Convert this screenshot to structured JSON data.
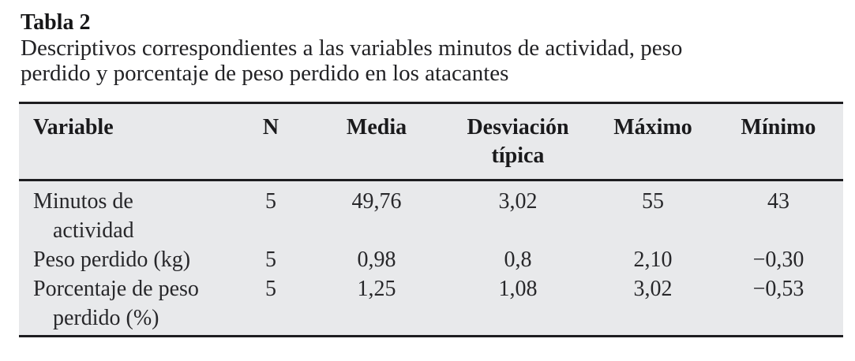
{
  "table_label": "Tabla 2",
  "caption": "Descriptivos correspondientes a las variables minutos de actividad, peso\nperdido y porcentaje de peso perdido en los atacantes",
  "table": {
    "columns": {
      "variable": "Variable",
      "n": "N",
      "media": "Media",
      "desviacion": "Desviación\ntípica",
      "maximo": "Máximo",
      "minimo": "Mínimo"
    },
    "rows": [
      {
        "variable": "Minutos de\nactividad",
        "n": "5",
        "media": "49,76",
        "desviacion": "3,02",
        "maximo": "55",
        "minimo": "43"
      },
      {
        "variable": "Peso perdido (kg)",
        "n": "5",
        "media": "0,98",
        "desviacion": "0,8",
        "maximo": "2,10",
        "minimo": "−0,30"
      },
      {
        "variable": "Porcentaje de peso\nperdido (%)",
        "n": "5",
        "media": "1,25",
        "desviacion": "1,08",
        "maximo": "3,02",
        "minimo": "−0,53"
      }
    ]
  },
  "colors": {
    "table_background": "#e8e9eb",
    "rule": "#1d1d20",
    "text": "#222225",
    "page_background": "#ffffff"
  }
}
